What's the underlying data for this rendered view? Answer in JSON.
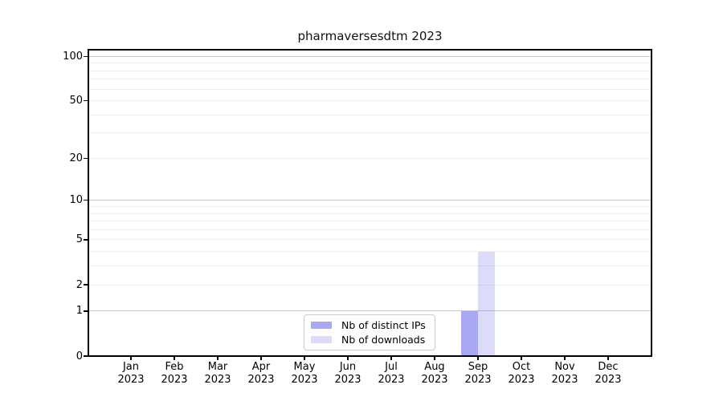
{
  "chart_data": {
    "type": "bar",
    "title": "pharmaversesdtm 2023",
    "x_tick_year": "2023",
    "categories": [
      "Jan",
      "Feb",
      "Mar",
      "Apr",
      "May",
      "Jun",
      "Jul",
      "Aug",
      "Sep",
      "Oct",
      "Nov",
      "Dec"
    ],
    "series": [
      {
        "name": "Nb of distinct IPs",
        "color": "rgba(80,80,230,0.49)",
        "values": [
          0,
          0,
          0,
          0,
          0,
          0,
          0,
          0,
          1,
          0,
          0,
          0
        ]
      },
      {
        "name": "Nb of downloads",
        "color": "rgba(80,80,230,0.20)",
        "values": [
          0,
          0,
          0,
          0,
          0,
          0,
          0,
          0,
          4,
          0,
          0,
          0
        ]
      }
    ],
    "yscale": "log1p",
    "ylabel": "",
    "xlabel": "",
    "y_ticks": [
      0,
      1,
      2,
      5,
      10,
      20,
      50,
      100
    ],
    "y_major_grid": [
      1,
      10,
      100
    ],
    "y_minor_grid": [
      2,
      3,
      4,
      5,
      6,
      7,
      8,
      9,
      20,
      30,
      40,
      50,
      60,
      70,
      80,
      90
    ],
    "ylim": [
      0,
      110
    ],
    "grid": true,
    "legend_position": "lower center",
    "colors": {
      "major_grid": "#c8c8c8",
      "minor_grid": "#eeeeee",
      "axis": "#000000",
      "title_text": "#111111"
    }
  }
}
